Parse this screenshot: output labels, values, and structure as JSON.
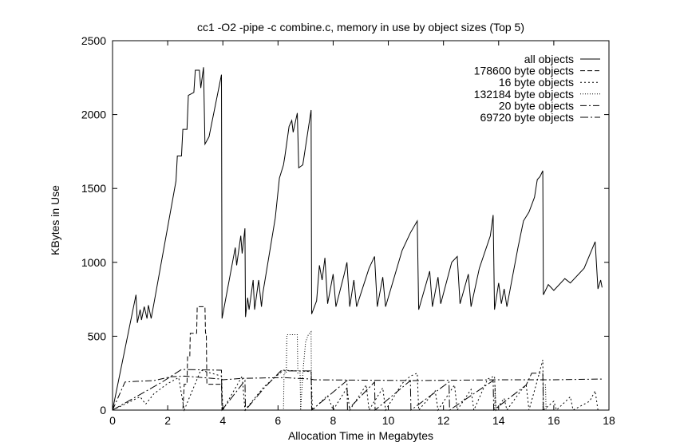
{
  "chart_data": {
    "type": "line",
    "title": "cc1 -O2 -pipe -c combine.c, memory in use by object sizes (Top 5)",
    "xlabel": "Allocation Time in Megabytes",
    "ylabel": "KBytes in Use",
    "xlim": [
      0,
      18
    ],
    "ylim": [
      0,
      2500
    ],
    "xticks": [
      0,
      2,
      4,
      6,
      8,
      10,
      12,
      14,
      16,
      18
    ],
    "yticks": [
      0,
      500,
      1000,
      1500,
      2000,
      2500
    ],
    "grid": false,
    "legend_position": "top-right",
    "series": [
      {
        "name": "all objects",
        "dash": "solid",
        "points": [
          [
            0,
            0
          ],
          [
            0.85,
            780
          ],
          [
            0.9,
            590
          ],
          [
            1.0,
            680
          ],
          [
            1.05,
            610
          ],
          [
            1.15,
            700
          ],
          [
            1.25,
            620
          ],
          [
            1.3,
            710
          ],
          [
            1.4,
            620
          ],
          [
            1.5,
            720
          ],
          [
            2.3,
            1550
          ],
          [
            2.35,
            1720
          ],
          [
            2.5,
            1720
          ],
          [
            2.55,
            1900
          ],
          [
            2.7,
            1900
          ],
          [
            2.75,
            2130
          ],
          [
            2.95,
            2150
          ],
          [
            3.0,
            2300
          ],
          [
            3.15,
            2300
          ],
          [
            3.2,
            2180
          ],
          [
            3.3,
            2320
          ],
          [
            3.35,
            1800
          ],
          [
            3.5,
            1850
          ],
          [
            3.95,
            2270
          ],
          [
            3.97,
            620
          ],
          [
            4.45,
            1100
          ],
          [
            4.5,
            980
          ],
          [
            4.65,
            1180
          ],
          [
            4.7,
            1060
          ],
          [
            4.8,
            1230
          ],
          [
            4.82,
            630
          ],
          [
            4.9,
            760
          ],
          [
            4.95,
            680
          ],
          [
            5.1,
            880
          ],
          [
            5.15,
            680
          ],
          [
            5.3,
            880
          ],
          [
            5.4,
            700
          ],
          [
            5.45,
            790
          ],
          [
            5.9,
            1300
          ],
          [
            6.05,
            1570
          ],
          [
            6.2,
            1660
          ],
          [
            6.25,
            1720
          ],
          [
            6.4,
            1920
          ],
          [
            6.5,
            1960
          ],
          [
            6.55,
            1880
          ],
          [
            6.7,
            2010
          ],
          [
            6.75,
            1640
          ],
          [
            6.9,
            1660
          ],
          [
            7.2,
            2030
          ],
          [
            7.22,
            650
          ],
          [
            7.4,
            740
          ],
          [
            7.5,
            980
          ],
          [
            7.6,
            880
          ],
          [
            7.7,
            1030
          ],
          [
            7.8,
            720
          ],
          [
            8.0,
            920
          ],
          [
            8.1,
            700
          ],
          [
            8.4,
            920
          ],
          [
            8.5,
            1000
          ],
          [
            8.6,
            700
          ],
          [
            8.75,
            880
          ],
          [
            8.85,
            700
          ],
          [
            9.3,
            960
          ],
          [
            9.5,
            1040
          ],
          [
            9.6,
            700
          ],
          [
            9.8,
            900
          ],
          [
            9.9,
            700
          ],
          [
            10.5,
            1080
          ],
          [
            10.8,
            1200
          ],
          [
            11.05,
            1280
          ],
          [
            11.1,
            680
          ],
          [
            11.5,
            940
          ],
          [
            11.6,
            700
          ],
          [
            11.8,
            900
          ],
          [
            11.9,
            720
          ],
          [
            12.3,
            1000
          ],
          [
            12.5,
            1040
          ],
          [
            12.6,
            720
          ],
          [
            12.9,
            920
          ],
          [
            13.0,
            700
          ],
          [
            13.3,
            960
          ],
          [
            13.7,
            1180
          ],
          [
            13.8,
            1320
          ],
          [
            13.85,
            680
          ],
          [
            14.0,
            860
          ],
          [
            14.1,
            720
          ],
          [
            14.2,
            820
          ],
          [
            14.3,
            700
          ],
          [
            14.7,
            1100
          ],
          [
            14.9,
            1280
          ],
          [
            15.1,
            1340
          ],
          [
            15.3,
            1440
          ],
          [
            15.4,
            1560
          ],
          [
            15.5,
            1580
          ],
          [
            15.6,
            1620
          ],
          [
            15.62,
            780
          ],
          [
            15.8,
            850
          ],
          [
            16.0,
            810
          ],
          [
            16.4,
            890
          ],
          [
            16.6,
            860
          ],
          [
            17.1,
            960
          ],
          [
            17.5,
            1140
          ],
          [
            17.6,
            820
          ],
          [
            17.7,
            880
          ],
          [
            17.75,
            830
          ]
        ]
      },
      {
        "name": "178600 byte objects",
        "dash": "dashed",
        "points": [
          [
            0,
            0
          ],
          [
            2.55,
            0
          ],
          [
            2.6,
            175
          ],
          [
            2.7,
            175
          ],
          [
            2.72,
            360
          ],
          [
            2.8,
            360
          ],
          [
            2.82,
            520
          ],
          [
            3.05,
            520
          ],
          [
            3.07,
            700
          ],
          [
            3.35,
            700
          ],
          [
            3.37,
            520
          ],
          [
            3.4,
            520
          ],
          [
            3.42,
            175
          ],
          [
            3.95,
            175
          ],
          [
            3.97,
            0
          ],
          [
            17.8,
            0
          ]
        ]
      },
      {
        "name": "16 byte objects",
        "dash": "dotted-dash",
        "points": [
          [
            0,
            0
          ],
          [
            1.0,
            90
          ],
          [
            1.2,
            40
          ],
          [
            1.5,
            110
          ],
          [
            2.0,
            180
          ],
          [
            2.4,
            220
          ],
          [
            2.6,
            0
          ],
          [
            3.2,
            270
          ],
          [
            3.95,
            230
          ],
          [
            4.0,
            0
          ],
          [
            4.7,
            230
          ],
          [
            4.8,
            0
          ],
          [
            5.5,
            160
          ],
          [
            6.2,
            270
          ],
          [
            7.2,
            260
          ],
          [
            7.25,
            0
          ],
          [
            7.8,
            100
          ],
          [
            8.0,
            0
          ],
          [
            8.5,
            150
          ],
          [
            8.6,
            0
          ],
          [
            9.2,
            170
          ],
          [
            9.3,
            0
          ],
          [
            9.8,
            150
          ],
          [
            9.9,
            0
          ],
          [
            10.5,
            180
          ],
          [
            10.8,
            230
          ],
          [
            11.05,
            250
          ],
          [
            11.1,
            0
          ],
          [
            11.7,
            130
          ],
          [
            11.8,
            0
          ],
          [
            12.4,
            170
          ],
          [
            12.5,
            0
          ],
          [
            13.0,
            140
          ],
          [
            13.1,
            0
          ],
          [
            13.6,
            210
          ],
          [
            13.85,
            230
          ],
          [
            13.9,
            0
          ],
          [
            14.2,
            80
          ],
          [
            14.3,
            0
          ],
          [
            14.8,
            130
          ],
          [
            15.0,
            170
          ],
          [
            15.1,
            0
          ],
          [
            15.4,
            200
          ],
          [
            15.6,
            340
          ],
          [
            15.62,
            0
          ],
          [
            16.0,
            60
          ],
          [
            16.1,
            0
          ],
          [
            16.6,
            90
          ],
          [
            16.7,
            0
          ],
          [
            17.3,
            60
          ],
          [
            17.5,
            130
          ],
          [
            17.6,
            0
          ],
          [
            17.75,
            0
          ]
        ]
      },
      {
        "name": "132184 byte objects",
        "dash": "fine-dotted",
        "points": [
          [
            0,
            0
          ],
          [
            6.2,
            0
          ],
          [
            6.22,
            250
          ],
          [
            6.3,
            250
          ],
          [
            6.32,
            510
          ],
          [
            6.7,
            510
          ],
          [
            6.72,
            250
          ],
          [
            6.8,
            250
          ],
          [
            6.82,
            0
          ],
          [
            6.9,
            250
          ],
          [
            7.0,
            460
          ],
          [
            7.1,
            510
          ],
          [
            7.2,
            530
          ],
          [
            7.22,
            0
          ],
          [
            13.85,
            0
          ],
          [
            13.87,
            170
          ],
          [
            13.9,
            0
          ],
          [
            15.6,
            0
          ],
          [
            15.62,
            170
          ],
          [
            15.7,
            170
          ],
          [
            15.72,
            0
          ],
          [
            17.8,
            0
          ]
        ]
      },
      {
        "name": "20 byte objects",
        "dash": "dash-dot",
        "points": [
          [
            0,
            0
          ],
          [
            0.45,
            190
          ],
          [
            0.9,
            195
          ],
          [
            1.5,
            200
          ],
          [
            2.1,
            225
          ],
          [
            2.6,
            230
          ],
          [
            3.95,
            210
          ],
          [
            4.0,
            205
          ],
          [
            4.7,
            215
          ],
          [
            6.2,
            220
          ],
          [
            7.2,
            210
          ],
          [
            7.3,
            205
          ],
          [
            11.0,
            200
          ],
          [
            14.0,
            205
          ],
          [
            16.0,
            205
          ],
          [
            17.75,
            210
          ]
        ]
      },
      {
        "name": "69720 byte objects",
        "dash": "long-dash-dot",
        "points": [
          [
            0,
            0
          ],
          [
            1.8,
            190
          ],
          [
            2.5,
            275
          ],
          [
            3.95,
            270
          ],
          [
            3.97,
            0
          ],
          [
            4.8,
            200
          ],
          [
            4.82,
            0
          ],
          [
            5.5,
            150
          ],
          [
            6.1,
            265
          ],
          [
            7.2,
            265
          ],
          [
            7.22,
            0
          ],
          [
            8.5,
            200
          ],
          [
            8.52,
            0
          ],
          [
            9.5,
            190
          ],
          [
            9.52,
            0
          ],
          [
            10.8,
            200
          ],
          [
            10.82,
            0
          ],
          [
            12.2,
            190
          ],
          [
            12.22,
            0
          ],
          [
            13.8,
            200
          ],
          [
            13.82,
            0
          ],
          [
            15.0,
            170
          ],
          [
            15.2,
            250
          ],
          [
            15.6,
            250
          ],
          [
            15.62,
            0
          ],
          [
            17.8,
            0
          ]
        ]
      }
    ]
  }
}
